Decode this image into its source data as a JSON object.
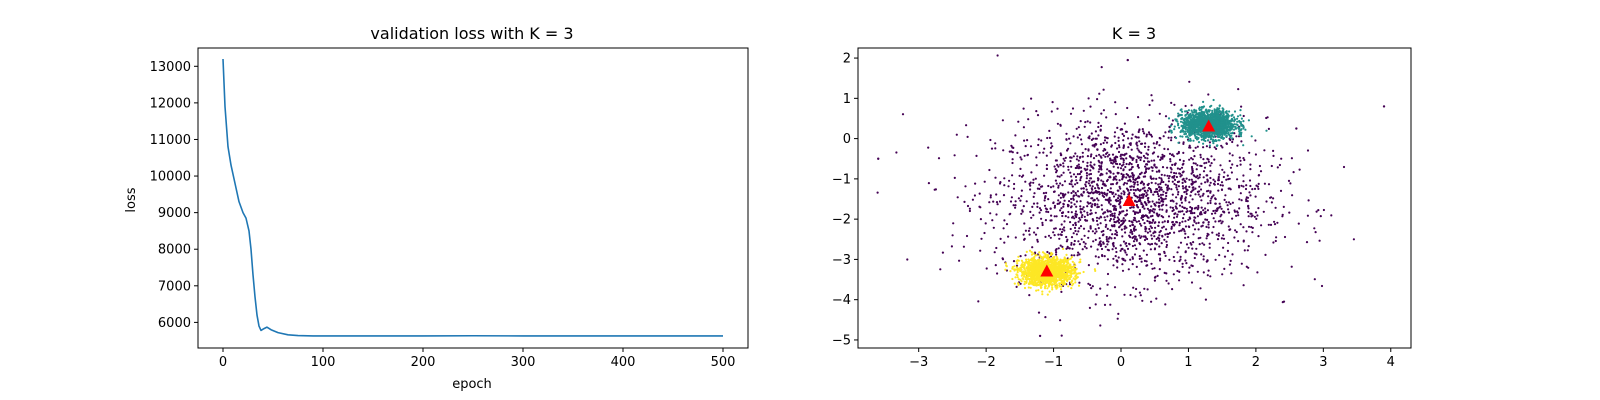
{
  "chart_data": [
    {
      "type": "line",
      "title": "validation loss with K = 3",
      "xlabel": "epoch",
      "ylabel": "loss",
      "xlim": [
        -25,
        525
      ],
      "ylim": [
        5300,
        13500
      ],
      "xticks": [
        0,
        100,
        200,
        300,
        400,
        500
      ],
      "yticks": [
        6000,
        7000,
        8000,
        9000,
        10000,
        11000,
        12000,
        13000
      ],
      "grid": false,
      "series": [
        {
          "color": "#1f77b4",
          "x": [
            0,
            2,
            5,
            8,
            12,
            16,
            20,
            23,
            26,
            28,
            30,
            32,
            34,
            36,
            38,
            41,
            44,
            48,
            55,
            65,
            75,
            90,
            110,
            150,
            200,
            250,
            300,
            350,
            400,
            450,
            500
          ],
          "y": [
            13200,
            11900,
            10800,
            10300,
            9800,
            9300,
            9000,
            8850,
            8500,
            8000,
            7300,
            6700,
            6200,
            5900,
            5780,
            5830,
            5870,
            5800,
            5720,
            5660,
            5640,
            5630,
            5630,
            5630,
            5630,
            5635,
            5630,
            5630,
            5630,
            5630,
            5630
          ]
        }
      ]
    },
    {
      "type": "scatter",
      "title": "K = 3",
      "xlabel": "",
      "ylabel": "",
      "xlim": [
        -3.9,
        4.3
      ],
      "ylim": [
        -5.2,
        2.25
      ],
      "xticks": [
        -3,
        -2,
        -1,
        0,
        1,
        2,
        3,
        4
      ],
      "yticks": [
        -5,
        -4,
        -3,
        -2,
        -1,
        0,
        1,
        2
      ],
      "grid": false,
      "clusters": [
        {
          "color": "#440154",
          "center": [
            0.15,
            -1.5
          ],
          "spread": [
            1.0,
            1.0
          ],
          "count": 2200
        },
        {
          "color": "#21918c",
          "center": [
            1.3,
            0.35
          ],
          "spread": [
            0.2,
            0.17
          ],
          "count": 1500
        },
        {
          "color": "#fde725",
          "center": [
            -1.1,
            -3.3
          ],
          "spread": [
            0.2,
            0.17
          ],
          "count": 1500
        }
      ],
      "outliers": [
        [
          -3.6,
          -0.5
        ],
        [
          3.9,
          0.8
        ],
        [
          0.1,
          1.95
        ],
        [
          -1.2,
          -4.9
        ],
        [
          2.6,
          0.25
        ]
      ],
      "centroids": {
        "color": "#ff0000",
        "marker": "triangle",
        "points": [
          [
            0.12,
            -1.55
          ],
          [
            1.3,
            0.3
          ],
          [
            -1.1,
            -3.3
          ]
        ]
      }
    }
  ]
}
